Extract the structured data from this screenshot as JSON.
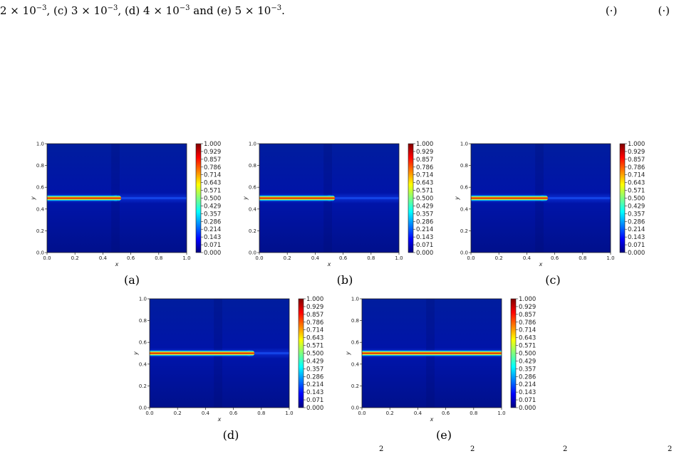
{
  "caption_top": {
    "left_parts": [
      "2 × 10",
      "−3",
      ", (c) 3 × 10",
      "−3",
      ", (d) 4 × 10",
      "−3",
      " and (e) 5 × 10",
      "−3",
      "."
    ],
    "right_fragment": "(·)            (·)"
  },
  "caption_bottom_fragments": [
    "2",
    "2",
    "2",
    "2"
  ],
  "colors": {
    "background": "#ffffff",
    "field_low": "#000b8f",
    "field_mid_dark": "#0018b5",
    "crack_core": "#8a0000",
    "colormap": [
      "#00007f",
      "#0000ff",
      "#007fff",
      "#00ffff",
      "#7fff7f",
      "#ffff00",
      "#ff7f00",
      "#ff0000",
      "#7f0000"
    ]
  },
  "chart_data": [
    {
      "type": "heatmap",
      "panel": "(a)",
      "xlabel": "x",
      "ylabel": "y",
      "xlim": [
        0.0,
        1.0
      ],
      "ylim": [
        0.0,
        1.0
      ],
      "xticks": [
        "0.0",
        "0.2",
        "0.4",
        "0.6",
        "0.8",
        "1.0"
      ],
      "yticks": [
        "0.0",
        "0.2",
        "0.4",
        "0.6",
        "0.8",
        "1.0"
      ],
      "colorbar_ticks": [
        "1.000",
        "0.929",
        "0.857",
        "0.786",
        "0.714",
        "0.643",
        "0.571",
        "0.500",
        "0.429",
        "0.357",
        "0.286",
        "0.214",
        "0.143",
        "0.071",
        "0.000"
      ],
      "crack": {
        "y": 0.5,
        "x_start": 0.0,
        "x_tip": 0.5
      }
    },
    {
      "type": "heatmap",
      "panel": "(b)",
      "xlabel": "x",
      "ylabel": "y",
      "xlim": [
        0.0,
        1.0
      ],
      "ylim": [
        0.0,
        1.0
      ],
      "xticks": [
        "0.0",
        "0.2",
        "0.4",
        "0.6",
        "0.8",
        "1.0"
      ],
      "yticks": [
        "0.0",
        "0.2",
        "0.4",
        "0.6",
        "0.8",
        "1.0"
      ],
      "colorbar_ticks": [
        "1.000",
        "0.929",
        "0.857",
        "0.786",
        "0.714",
        "0.643",
        "0.571",
        "0.500",
        "0.429",
        "0.357",
        "0.286",
        "0.214",
        "0.143",
        "0.071",
        "0.000"
      ],
      "crack": {
        "y": 0.5,
        "x_start": 0.0,
        "x_tip": 0.51
      }
    },
    {
      "type": "heatmap",
      "panel": "(c)",
      "xlabel": "x",
      "ylabel": "y",
      "xlim": [
        0.0,
        1.0
      ],
      "ylim": [
        0.0,
        1.0
      ],
      "xticks": [
        "0.0",
        "0.2",
        "0.4",
        "0.6",
        "0.8",
        "1.0"
      ],
      "yticks": [
        "0.0",
        "0.2",
        "0.4",
        "0.6",
        "0.8",
        "1.0"
      ],
      "colorbar_ticks": [
        "1.000",
        "0.929",
        "0.857",
        "0.786",
        "0.714",
        "0.643",
        "0.571",
        "0.500",
        "0.429",
        "0.357",
        "0.286",
        "0.214",
        "0.143",
        "0.071",
        "0.000"
      ],
      "crack": {
        "y": 0.5,
        "x_start": 0.0,
        "x_tip": 0.52
      }
    },
    {
      "type": "heatmap",
      "panel": "(d)",
      "xlabel": "x",
      "ylabel": "y",
      "xlim": [
        0.0,
        1.0
      ],
      "ylim": [
        0.0,
        1.0
      ],
      "xticks": [
        "0.0",
        "0.2",
        "0.4",
        "0.6",
        "0.8",
        "1.0"
      ],
      "yticks": [
        "0.0",
        "0.2",
        "0.4",
        "0.6",
        "0.8",
        "1.0"
      ],
      "colorbar_ticks": [
        "1.000",
        "0.929",
        "0.857",
        "0.786",
        "0.714",
        "0.643",
        "0.571",
        "0.500",
        "0.429",
        "0.357",
        "0.286",
        "0.214",
        "0.143",
        "0.071",
        "0.000"
      ],
      "crack": {
        "y": 0.5,
        "x_start": 0.0,
        "x_tip": 0.72
      }
    },
    {
      "type": "heatmap",
      "panel": "(e)",
      "xlabel": "x",
      "ylabel": "y",
      "xlim": [
        0.0,
        1.0
      ],
      "ylim": [
        0.0,
        1.0
      ],
      "xticks": [
        "0.0",
        "0.2",
        "0.4",
        "0.6",
        "0.8",
        "1.0"
      ],
      "yticks": [
        "0.0",
        "0.2",
        "0.4",
        "0.6",
        "0.8",
        "1.0"
      ],
      "colorbar_ticks": [
        "1.000",
        "0.929",
        "0.857",
        "0.786",
        "0.714",
        "0.643",
        "0.571",
        "0.500",
        "0.429",
        "0.357",
        "0.286",
        "0.214",
        "0.143",
        "0.071",
        "0.000"
      ],
      "crack": {
        "y": 0.5,
        "x_start": 0.0,
        "x_tip": 1.0
      }
    }
  ]
}
